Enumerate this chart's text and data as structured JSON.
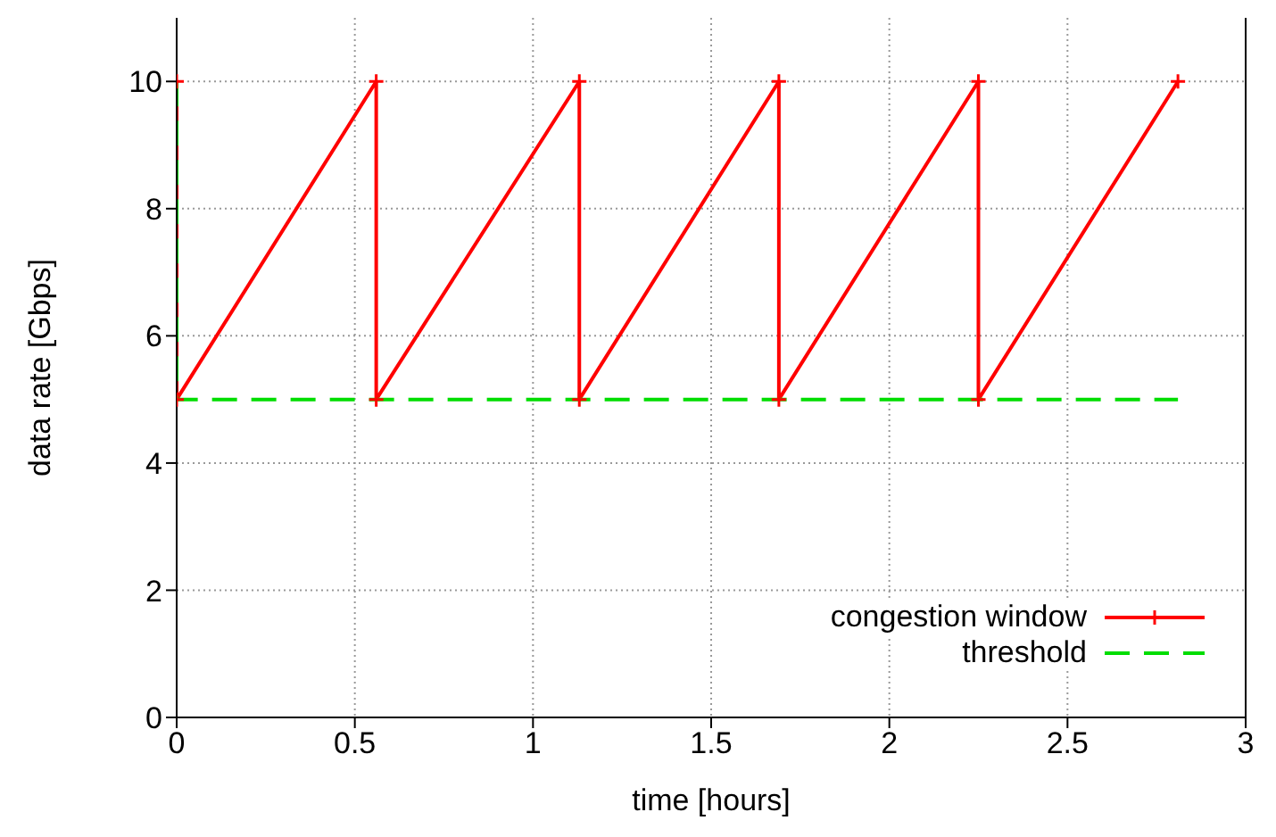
{
  "chart_data": {
    "type": "line",
    "xlabel": "time [hours]",
    "ylabel": "data rate [Gbps]",
    "xlim": [
      0,
      3
    ],
    "xticks": [
      0,
      0.5,
      1,
      1.5,
      2,
      2.5,
      3
    ],
    "ylim": [
      0,
      11
    ],
    "yticks": [
      0,
      2,
      4,
      6,
      8,
      10
    ],
    "grid": true,
    "legend": "bottom right",
    "series": [
      {
        "name": "congestion window",
        "color": "#ff0000",
        "marker": "cross",
        "line_style": "solid",
        "x": [
          0,
          0,
          0.56,
          0.56,
          1.13,
          1.13,
          1.69,
          1.69,
          2.25,
          2.25,
          2.81
        ],
        "values": [
          10,
          5,
          10,
          5,
          10,
          5,
          10,
          5,
          10,
          5,
          10
        ]
      },
      {
        "name": "threshold",
        "color": "#00dd00",
        "marker": "none",
        "line_style": "dashed",
        "x": [
          0,
          0,
          2.81
        ],
        "values": [
          10,
          5,
          5
        ]
      }
    ]
  }
}
